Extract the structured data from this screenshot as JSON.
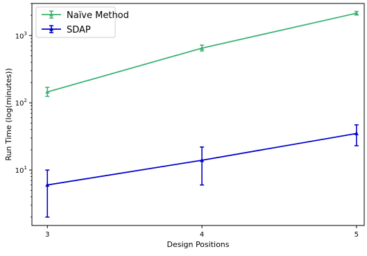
{
  "chart_data": {
    "type": "line",
    "xlabel": "Design Positions",
    "ylabel": "Run Time (log(minutes))",
    "yscale": "log",
    "xlim": [
      2.9,
      5.05
    ],
    "ylim": [
      1.5,
      3000
    ],
    "x": [
      3,
      4,
      5
    ],
    "x_tick_labels": [
      "3",
      "4",
      "5"
    ],
    "y_ticks": [
      {
        "value": 10,
        "base": "10",
        "exp": "1"
      },
      {
        "value": 100,
        "base": "10",
        "exp": "2"
      },
      {
        "value": 1000,
        "base": "10",
        "exp": "3"
      }
    ],
    "legend_position": "upper-left",
    "series": [
      {
        "name": "Naïve Method",
        "color": "#3cb371",
        "marker": "triangle-up",
        "values": [
          145,
          650,
          2150
        ],
        "err_low": [
          125,
          590,
          2020
        ],
        "err_high": [
          170,
          720,
          2280
        ]
      },
      {
        "name": "SDAP",
        "color": "#0000cd",
        "marker": "triangle-up",
        "values": [
          6,
          14,
          35
        ],
        "err_low": [
          2,
          6,
          23
        ],
        "err_high": [
          10,
          22,
          47
        ]
      }
    ]
  }
}
